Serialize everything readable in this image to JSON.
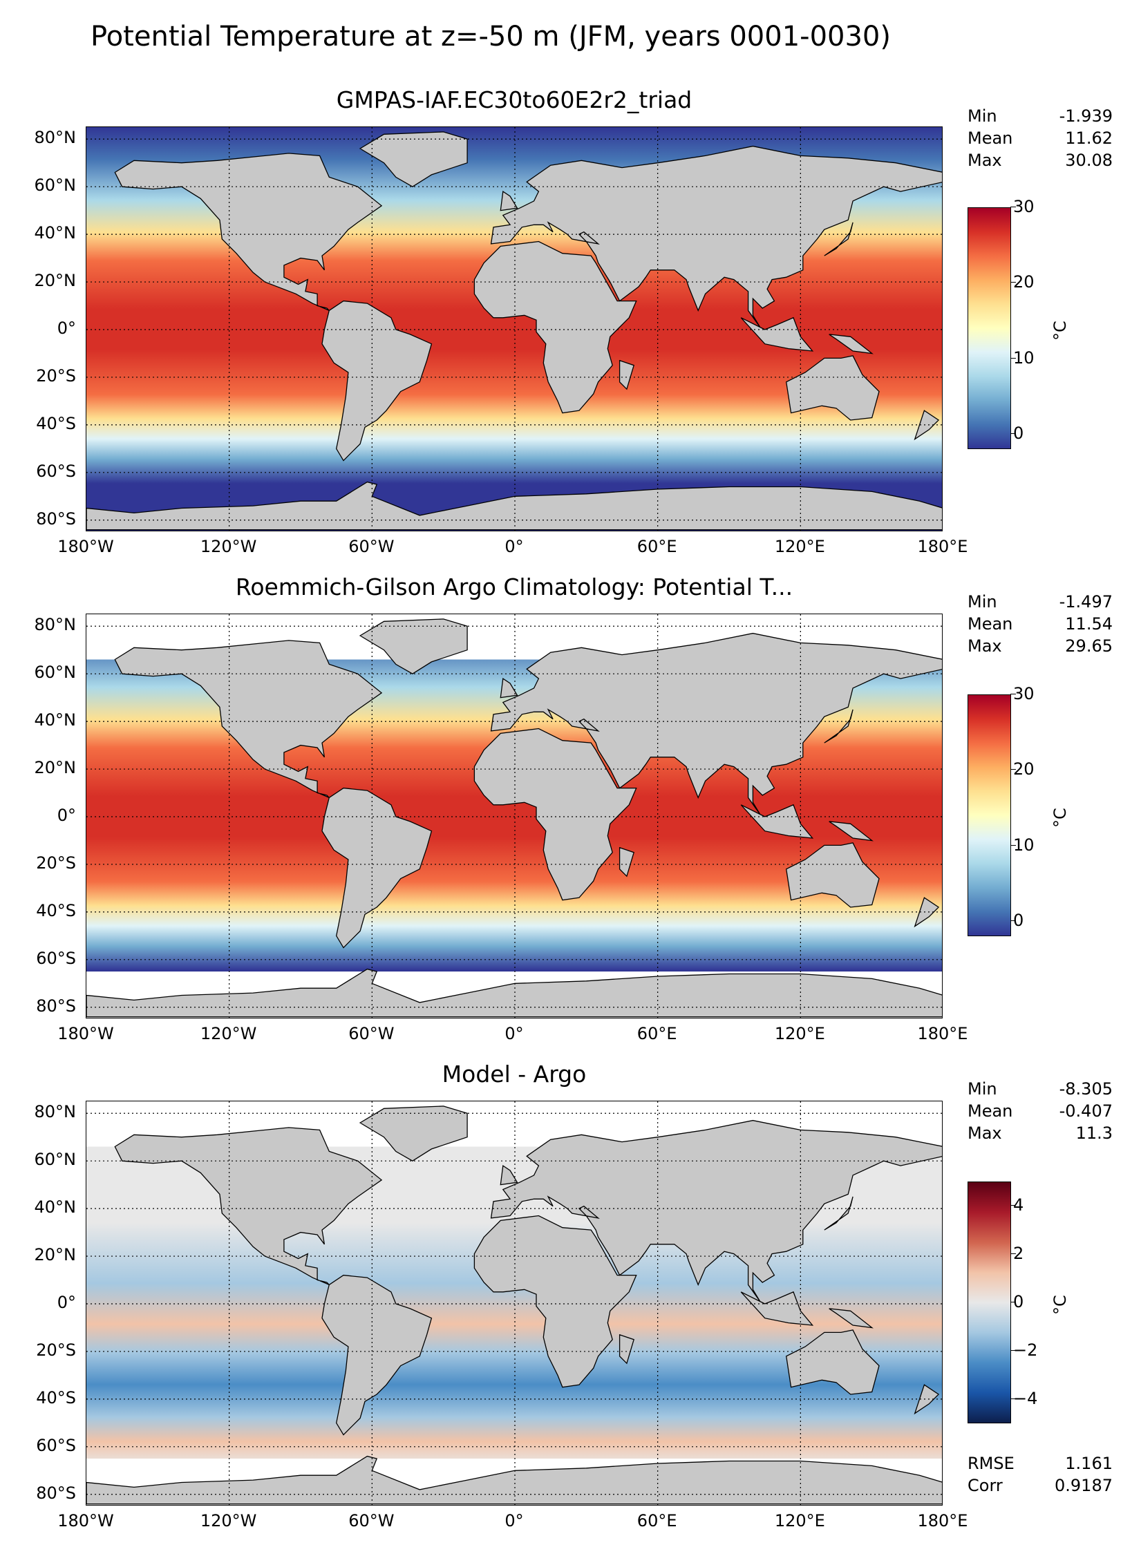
{
  "suptitle": "Potential Temperature at z=-50 m (JFM, years 0001-0030)",
  "lat_labels": [
    "80°N",
    "60°N",
    "40°N",
    "20°N",
    "0°",
    "20°S",
    "40°S",
    "60°S",
    "80°S"
  ],
  "lon_labels": [
    "180°W",
    "120°W",
    "60°W",
    "0°",
    "60°E",
    "120°E",
    "180°E"
  ],
  "panels": [
    {
      "title": "GMPAS-IAF.EC30to60E2r2_triad",
      "stats": [
        {
          "label": "Min",
          "value": "-1.939"
        },
        {
          "label": "Mean",
          "value": "11.62"
        },
        {
          "label": "Max",
          "value": "30.08"
        }
      ],
      "colorbar": {
        "label": "°C",
        "ticks": [
          "30",
          "20",
          "10",
          "0"
        ],
        "colormap": "RdYlBu_r",
        "colors": [
          "#313695",
          "#4575b4",
          "#74add1",
          "#abd9e9",
          "#e0f3f8",
          "#ffffbf",
          "#fee090",
          "#fdae61",
          "#f46d43",
          "#d73027",
          "#a50026"
        ]
      }
    },
    {
      "title": "Roemmich-Gilson Argo Climatology: Potential T...",
      "stats": [
        {
          "label": "Min",
          "value": "-1.497"
        },
        {
          "label": "Mean",
          "value": "11.54"
        },
        {
          "label": "Max",
          "value": "29.65"
        }
      ],
      "colorbar": {
        "label": "°C",
        "ticks": [
          "30",
          "20",
          "10",
          "0"
        ],
        "colormap": "RdYlBu_r",
        "colors": [
          "#313695",
          "#4575b4",
          "#74add1",
          "#abd9e9",
          "#e0f3f8",
          "#ffffbf",
          "#fee090",
          "#fdae61",
          "#f46d43",
          "#d73027",
          "#a50026"
        ]
      }
    },
    {
      "title": "Model - Argo",
      "stats": [
        {
          "label": "Min",
          "value": "-8.305"
        },
        {
          "label": "Mean",
          "value": "-0.407"
        },
        {
          "label": "Max",
          "value": "11.3"
        }
      ],
      "colorbar": {
        "label": "°C",
        "ticks": [
          "4",
          "2",
          "0",
          "−2",
          "−4"
        ],
        "colormap": "RdBu_r",
        "colors": [
          "#0d1f4d",
          "#1a56a8",
          "#4b8dc6",
          "#a5c8e1",
          "#e8e8e8",
          "#f2c3a8",
          "#d1654f",
          "#a81a2a",
          "#5a0014"
        ]
      },
      "bottom_stats": [
        {
          "label": "RMSE",
          "value": "1.161"
        },
        {
          "label": "Corr",
          "value": "0.9187"
        }
      ]
    }
  ],
  "colors": {
    "land": "#c8c8c8",
    "missing": "#ffffff",
    "coast": "#000000"
  }
}
